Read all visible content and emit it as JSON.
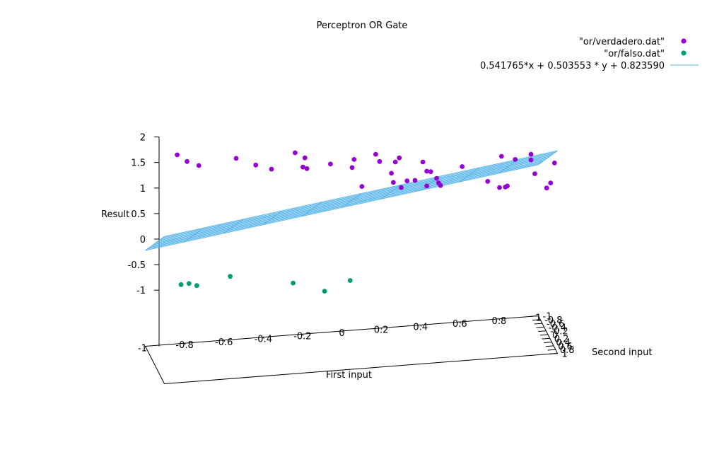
{
  "chart_data": {
    "type": "scatter",
    "title": "Perceptron OR Gate",
    "xlabel": "First input",
    "ylabel": "Second input",
    "zlabel": "Result",
    "xlim": [
      -1,
      1
    ],
    "ylim": [
      -1,
      1
    ],
    "zlim": [
      -1,
      2
    ],
    "x_ticks": [
      "-1",
      "-0.8",
      "-0.6",
      "-0.4",
      "-0.2",
      "0",
      "0.2",
      "0.4",
      "0.6",
      "0.8",
      "1"
    ],
    "y_ticks": [
      "-1",
      "-0.8",
      "-0.6",
      "-0.4",
      "-0.2",
      "0",
      "0.2",
      "0.4",
      "0.6",
      "0.8",
      "1"
    ],
    "z_ticks": [
      "2",
      "1.5",
      "1",
      "0.5",
      "0",
      "-0.5",
      "-1"
    ],
    "legend_position": "top-right",
    "series": [
      {
        "name": "\"or/verdadero.dat\"",
        "color": "#9400d3",
        "points": [
          {
            "x": -0.89,
            "z": 1.65
          },
          {
            "x": -0.84,
            "z": 1.52
          },
          {
            "x": -0.78,
            "z": 1.44
          },
          {
            "x": -0.59,
            "z": 1.58
          },
          {
            "x": -0.49,
            "z": 1.45
          },
          {
            "x": -0.41,
            "z": 1.37
          },
          {
            "x": -0.29,
            "z": 1.69
          },
          {
            "x": -0.25,
            "z": 1.41
          },
          {
            "x": -0.24,
            "z": 1.59
          },
          {
            "x": -0.23,
            "z": 1.38
          },
          {
            "x": -0.11,
            "z": 1.47
          },
          {
            "x": 0.0,
            "z": 1.4
          },
          {
            "x": 0.01,
            "z": 1.56
          },
          {
            "x": 0.05,
            "z": 1.03
          },
          {
            "x": 0.12,
            "z": 1.66
          },
          {
            "x": 0.14,
            "z": 1.52
          },
          {
            "x": 0.2,
            "z": 1.29
          },
          {
            "x": 0.21,
            "z": 1.11
          },
          {
            "x": 0.22,
            "z": 1.51
          },
          {
            "x": 0.24,
            "z": 1.59
          },
          {
            "x": 0.25,
            "z": 1.01
          },
          {
            "x": 0.28,
            "z": 1.14
          },
          {
            "x": 0.32,
            "z": 1.15
          },
          {
            "x": 0.36,
            "z": 1.51
          },
          {
            "x": 0.38,
            "z": 1.33
          },
          {
            "x": 0.38,
            "z": 1.04
          },
          {
            "x": 0.4,
            "z": 1.32
          },
          {
            "x": 0.43,
            "z": 1.19
          },
          {
            "x": 0.44,
            "z": 1.1
          },
          {
            "x": 0.45,
            "z": 1.05
          },
          {
            "x": 0.56,
            "z": 1.42
          },
          {
            "x": 0.69,
            "z": 1.13
          },
          {
            "x": 0.75,
            "z": 1.01
          },
          {
            "x": 0.76,
            "z": 1.62
          },
          {
            "x": 0.78,
            "z": 1.02
          },
          {
            "x": 0.79,
            "z": 1.04
          },
          {
            "x": 0.83,
            "z": 1.56
          },
          {
            "x": 0.91,
            "z": 1.66
          },
          {
            "x": 0.91,
            "z": 1.55
          },
          {
            "x": 0.93,
            "z": 1.28
          },
          {
            "x": 0.99,
            "z": 1.0
          },
          {
            "x": 1.01,
            "z": 1.1
          },
          {
            "x": 1.03,
            "z": 1.49
          }
        ]
      },
      {
        "name": "\"or/falso.dat\"",
        "color": "#009e73",
        "points": [
          {
            "x": -0.87,
            "z": -0.89
          },
          {
            "x": -0.83,
            "z": -0.87
          },
          {
            "x": -0.79,
            "z": -0.91
          },
          {
            "x": -0.62,
            "z": -0.73
          },
          {
            "x": -0.3,
            "z": -0.86
          },
          {
            "x": -0.14,
            "z": -1.02
          },
          {
            "x": -0.01,
            "z": -0.81
          }
        ]
      },
      {
        "name": "0.541765*x + 0.503553 * y + 0.823590",
        "color": "#56b4e9",
        "plot_type": "surface-mesh",
        "coefficients": {
          "x": 0.541765,
          "y": 0.503553,
          "c": 0.82359
        }
      }
    ]
  }
}
